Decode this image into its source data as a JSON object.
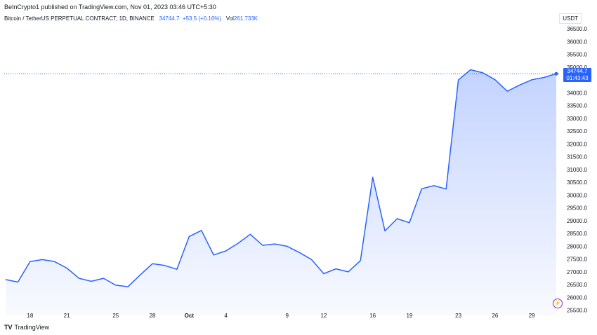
{
  "header": {
    "published": "BeInCrypto1 published on TradingView.com, Nov 01, 2023 03:46 UTC+5:30",
    "symbol": "Bitcoin / TetherUS PERPETUAL CONTRACT, 1D, BINANCE",
    "last": "34744.7",
    "change": "+53.5 (+0.16%)",
    "vol_label": "Vol",
    "vol_value": "261.733K",
    "unit": "USDT"
  },
  "price_tag": {
    "price": "34744.7",
    "countdown": "01:43:43"
  },
  "footer": {
    "brand": "TradingView",
    "logo": "TV"
  },
  "icons": {
    "flash": "lightning-icon"
  },
  "colors": {
    "line": "#2962ff",
    "fill": "#2962ff",
    "last_price": "#2962ff"
  },
  "chart_data": {
    "type": "area",
    "x": [
      "Sep 16",
      "Sep 17",
      "Sep 18",
      "Sep 19",
      "Sep 20",
      "Sep 21",
      "Sep 22",
      "Sep 23",
      "Sep 24",
      "Sep 25",
      "Sep 26",
      "Sep 27",
      "Sep 28",
      "Sep 29",
      "Sep 30",
      "Oct 1",
      "Oct 2",
      "Oct 3",
      "Oct 4",
      "Oct 5",
      "Oct 6",
      "Oct 7",
      "Oct 8",
      "Oct 9",
      "Oct 10",
      "Oct 11",
      "Oct 12",
      "Oct 13",
      "Oct 14",
      "Oct 15",
      "Oct 16",
      "Oct 17",
      "Oct 18",
      "Oct 19",
      "Oct 20",
      "Oct 21",
      "Oct 22",
      "Oct 23",
      "Oct 24",
      "Oct 25",
      "Oct 26",
      "Oct 27",
      "Oct 28",
      "Oct 29",
      "Oct 30",
      "Oct 31"
    ],
    "values": [
      26700,
      26600,
      27400,
      27480,
      27400,
      27150,
      26750,
      26630,
      26750,
      26480,
      26420,
      26880,
      27320,
      27250,
      27100,
      28380,
      28620,
      27660,
      27820,
      28120,
      28470,
      28040,
      28090,
      28000,
      27760,
      27480,
      26930,
      27120,
      27000,
      27440,
      30700,
      28600,
      29080,
      28920,
      30250,
      30370,
      30240,
      34500,
      34900,
      34780,
      34510,
      34060,
      34300,
      34510,
      34600,
      34744.7
    ],
    "y_ticks": [
      "25500.0",
      "26000.0",
      "26500.0",
      "27000.0",
      "27500.0",
      "28000.0",
      "28500.0",
      "29000.0",
      "29500.0",
      "30000.0",
      "30500.0",
      "31000.0",
      "31500.0",
      "32000.0",
      "32500.0",
      "33000.0",
      "33500.0",
      "34000.0",
      "34500.0",
      "35000.0",
      "35500.0",
      "36000.0",
      "36500.0"
    ],
    "x_ticks": [
      {
        "label": "18",
        "x": "Sep 18"
      },
      {
        "label": "21",
        "x": "Sep 21"
      },
      {
        "label": "25",
        "x": "Sep 25"
      },
      {
        "label": "28",
        "x": "Sep 28"
      },
      {
        "label": "Oct",
        "x": "Oct 1"
      },
      {
        "label": "4",
        "x": "Oct 4"
      },
      {
        "label": "9",
        "x": "Oct 9"
      },
      {
        "label": "12",
        "x": "Oct 12"
      },
      {
        "label": "16",
        "x": "Oct 16"
      },
      {
        "label": "19",
        "x": "Oct 19"
      },
      {
        "label": "23",
        "x": "Oct 23"
      },
      {
        "label": "26",
        "x": "Oct 26"
      },
      {
        "label": "29",
        "x": "Oct 29"
      }
    ],
    "ylim": [
      25300,
      36750
    ],
    "last_price": 34744.7,
    "grid": false
  }
}
